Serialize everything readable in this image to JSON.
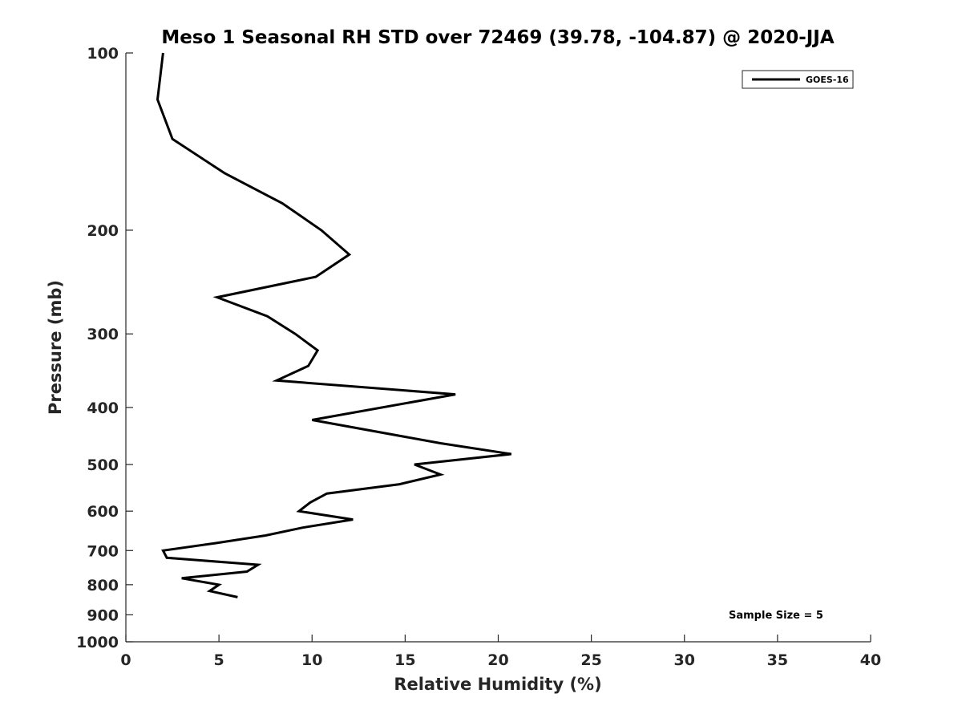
{
  "chart_data": {
    "type": "line",
    "title": "Meso 1 Seasonal RH STD over 72469 (39.78, -104.87) @ 2020-JJA",
    "xlabel": "Relative Humidity (%)",
    "ylabel": "Pressure (mb)",
    "xlim": [
      0,
      40
    ],
    "ylim": [
      100,
      1000
    ],
    "y_scale": "log",
    "y_reversed": true,
    "xticks": [
      0,
      5,
      10,
      15,
      20,
      25,
      30,
      35,
      40
    ],
    "xtick_labels": [
      "0",
      "5",
      "10",
      "15",
      "20",
      "25",
      "30",
      "35",
      "40"
    ],
    "yticks": [
      100,
      200,
      300,
      400,
      500,
      600,
      700,
      800,
      900,
      1000
    ],
    "ytick_labels": [
      "100",
      "200",
      "300",
      "400",
      "500",
      "600",
      "700",
      "800",
      "900",
      "1000"
    ],
    "grid": false,
    "legend": {
      "position": "top-right",
      "entries": [
        "GOES-16"
      ]
    },
    "annotation": "Sample Size = 5",
    "series": [
      {
        "name": "GOES-16",
        "color": "#000000",
        "points": [
          {
            "x": 2.0,
            "p": 100
          },
          {
            "x": 1.7,
            "p": 120
          },
          {
            "x": 2.5,
            "p": 140
          },
          {
            "x": 5.3,
            "p": 160
          },
          {
            "x": 8.4,
            "p": 180
          },
          {
            "x": 10.5,
            "p": 200
          },
          {
            "x": 12.0,
            "p": 220
          },
          {
            "x": 10.2,
            "p": 240
          },
          {
            "x": 4.9,
            "p": 260
          },
          {
            "x": 7.6,
            "p": 280
          },
          {
            "x": 9.1,
            "p": 300
          },
          {
            "x": 10.3,
            "p": 320
          },
          {
            "x": 9.8,
            "p": 340
          },
          {
            "x": 8.1,
            "p": 360
          },
          {
            "x": 17.7,
            "p": 380
          },
          {
            "x": 10.0,
            "p": 420
          },
          {
            "x": 16.9,
            "p": 460
          },
          {
            "x": 20.7,
            "p": 480
          },
          {
            "x": 15.5,
            "p": 500
          },
          {
            "x": 16.9,
            "p": 520
          },
          {
            "x": 14.7,
            "p": 540
          },
          {
            "x": 10.8,
            "p": 560
          },
          {
            "x": 9.9,
            "p": 580
          },
          {
            "x": 9.3,
            "p": 600
          },
          {
            "x": 12.2,
            "p": 620
          },
          {
            "x": 9.5,
            "p": 640
          },
          {
            "x": 7.5,
            "p": 660
          },
          {
            "x": 4.8,
            "p": 680
          },
          {
            "x": 2.0,
            "p": 700
          },
          {
            "x": 2.2,
            "p": 720
          },
          {
            "x": 7.1,
            "p": 740
          },
          {
            "x": 6.5,
            "p": 760
          },
          {
            "x": 3.0,
            "p": 780
          },
          {
            "x": 5.0,
            "p": 800
          },
          {
            "x": 4.5,
            "p": 820
          },
          {
            "x": 6.0,
            "p": 840
          }
        ]
      }
    ]
  }
}
